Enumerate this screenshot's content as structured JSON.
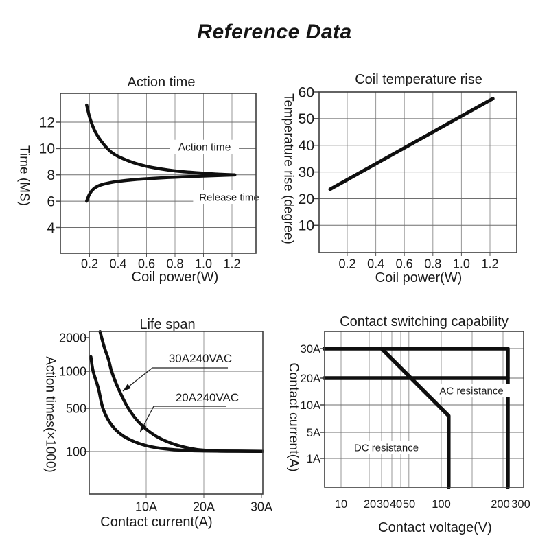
{
  "page": {
    "title": "Reference Data"
  },
  "colors": {
    "ink": "#1a1a1a",
    "curve": "#0f0f0f",
    "grid_vertical": "#979797",
    "grid_horizontal": "#6e6e6e",
    "plot_border": "#3d3d3d",
    "background": "#ffffff"
  },
  "chart_data": [
    {
      "type": "line",
      "title": "Action time",
      "xlabel": "Coil power(W)",
      "ylabel": "Time (MS)",
      "x_ticks": [
        "0.2",
        "0.4",
        "0.6",
        "0.8",
        "1.0",
        "1.2"
      ],
      "y_ticks": [
        "4",
        "6",
        "8",
        "10",
        "12"
      ],
      "xlim": [
        0,
        1.37
      ],
      "ylim": [
        2,
        14.1
      ],
      "grid": true,
      "series": [
        {
          "name": "Action time",
          "points": [
            [
              0.18,
              13.3
            ],
            [
              0.2,
              12.4
            ],
            [
              0.23,
              11.5
            ],
            [
              0.26,
              10.9
            ],
            [
              0.3,
              10.3
            ],
            [
              0.35,
              9.75
            ],
            [
              0.4,
              9.4
            ],
            [
              0.5,
              8.95
            ],
            [
              0.6,
              8.65
            ],
            [
              0.7,
              8.45
            ],
            [
              0.8,
              8.3
            ],
            [
              0.9,
              8.2
            ],
            [
              1.0,
              8.12
            ],
            [
              1.1,
              8.05
            ],
            [
              1.22,
              8.0
            ]
          ]
        },
        {
          "name": "Release time",
          "points": [
            [
              0.18,
              6.0
            ],
            [
              0.2,
              6.55
            ],
            [
              0.23,
              6.95
            ],
            [
              0.26,
              7.15
            ],
            [
              0.3,
              7.3
            ],
            [
              0.35,
              7.42
            ],
            [
              0.4,
              7.5
            ],
            [
              0.5,
              7.62
            ],
            [
              0.6,
              7.7
            ],
            [
              0.7,
              7.77
            ],
            [
              0.8,
              7.82
            ],
            [
              0.9,
              7.87
            ],
            [
              1.0,
              7.91
            ],
            [
              1.1,
              7.95
            ],
            [
              1.22,
              7.99
            ]
          ]
        }
      ],
      "annotations": [
        "Action time",
        "Release time"
      ]
    },
    {
      "type": "line",
      "title": "Coil temperature rise",
      "xlabel": "Coil power(W)",
      "ylabel": "Temperature rise (degree)",
      "x_ticks": [
        "0.2",
        "0.4",
        "0.6",
        "0.8",
        "1.0",
        "1.2"
      ],
      "y_ticks": [
        "10",
        "20",
        "30",
        "40",
        "50",
        "60"
      ],
      "xlim": [
        0,
        1.39
      ],
      "ylim": [
        0,
        60
      ],
      "grid": true,
      "series": [
        {
          "name": "Temperature rise",
          "points": [
            [
              0.08,
              23.5
            ],
            [
              1.22,
              57.5
            ]
          ]
        }
      ],
      "annotations": []
    },
    {
      "type": "line",
      "title": "Life span",
      "xlabel": "Contact current(A)",
      "ylabel": "Action times(×1000)",
      "x_ticks": [
        "10A",
        "20A",
        "30A"
      ],
      "y_ticks": [
        "100",
        "500",
        "1000",
        "2000"
      ],
      "y_scale": "nonlinear",
      "grid": true,
      "series": [
        {
          "name": "30A240VAC",
          "points": [
            [
              2.0,
              2180
            ],
            [
              2.7,
              1730
            ],
            [
              3.5,
              1330
            ],
            [
              4.0,
              1000
            ],
            [
              5.1,
              780
            ],
            [
              6.9,
              500
            ],
            [
              9.0,
              355
            ],
            [
              11.8,
              240
            ],
            [
              15.0,
              165
            ],
            [
              18.6,
              120
            ],
            [
              22.1,
              106
            ],
            [
              26,
              103
            ],
            [
              30.2,
              102
            ]
          ]
        },
        {
          "name": "20A240VAC",
          "points": [
            [
              0.4,
              1430
            ],
            [
              0.8,
              1000
            ],
            [
              1.7,
              770
            ],
            [
              2.5,
              500
            ],
            [
              3.8,
              360
            ],
            [
              5.6,
              260
            ],
            [
              8.0,
              190
            ],
            [
              10.8,
              145
            ],
            [
              14.2,
              120
            ],
            [
              18,
              108
            ],
            [
              24,
              104
            ],
            [
              30.2,
              102
            ]
          ]
        }
      ],
      "annotations": [
        "30A240VAC",
        "20A240VAC"
      ]
    },
    {
      "type": "line",
      "title": "Contact switching capability",
      "xlabel": "Contact voltage(V)",
      "ylabel": "Contact current(A)",
      "x_ticks": [
        "10",
        "20",
        "30",
        "40",
        "50",
        "100",
        "200",
        "300"
      ],
      "y_ticks": [
        "1A",
        "5A",
        "10A",
        "20A",
        "30A"
      ],
      "x_scale": "log",
      "y_scale": "log",
      "grid": true,
      "series": [
        {
          "name": "AC resistance limit 30A",
          "points": [
            [
              4,
              30
            ],
            [
              225,
              30
            ],
            [
              225,
              0
            ]
          ]
        },
        {
          "name": "AC resistance limit 20A",
          "points": [
            [
              4,
              20
            ],
            [
              225,
              20
            ]
          ]
        },
        {
          "name": "DC resistance limit",
          "points": [
            [
              30,
              30
            ],
            [
              112,
              8
            ],
            [
              112,
              0
            ]
          ]
        }
      ],
      "annotations": [
        "AC resistance",
        "DC resistance"
      ]
    }
  ]
}
